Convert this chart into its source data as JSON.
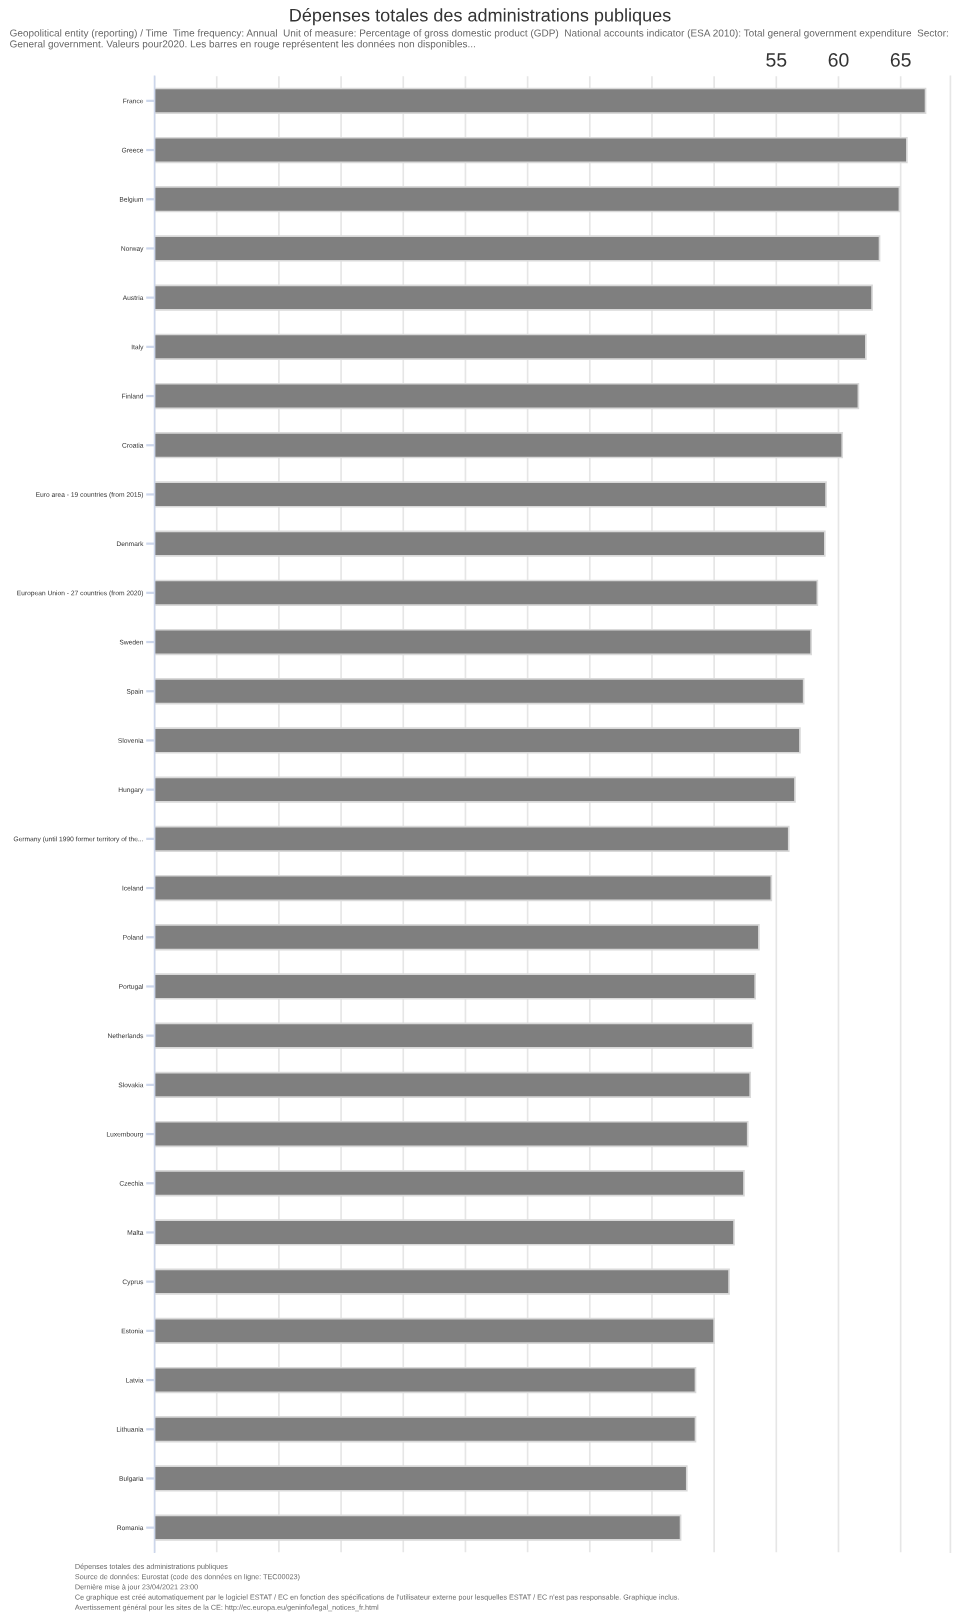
{
  "chart_data": {
    "type": "bar",
    "orientation": "horizontal",
    "title": "Dépenses totales des administrations publiques",
    "subtitle": "Geopolitical entity (reporting) / Time  Time frequency: Annual  Unit of measure: Percentage of gross domestic product (GDP)  National accounts indicator (ESA 2010): Total general government expenditure  Sector: General government. Valeurs pour2020. Les barres en rouge représentent les données non disponibles...",
    "categories": [
      "France",
      "Greece",
      "Belgium",
      "Norway",
      "Austria",
      "Italy",
      "Finland",
      "Croatia",
      "Euro area - 19 countries (from 2015)",
      "Denmark",
      "European Union - 27 countries (from 2020)",
      "Sweden",
      "Spain",
      "Slovenia",
      "Hungary",
      "Germany (until 1990 former territory of the...",
      "Iceland",
      "Poland",
      "Portugal",
      "Netherlands",
      "Slovakia",
      "Luxembourg",
      "Czechia",
      "Malta",
      "Cyprus",
      "Estonia",
      "Latvia",
      "Lithuania",
      "Bulgaria",
      "Romania"
    ],
    "values": [
      67.0,
      65.5,
      64.9,
      63.3,
      62.7,
      62.2,
      61.6,
      60.3,
      59.0,
      58.9,
      58.3,
      57.8,
      57.2,
      56.9,
      56.5,
      56.0,
      54.6,
      53.6,
      53.3,
      53.1,
      52.9,
      52.7,
      52.4,
      51.6,
      51.2,
      50.0,
      48.5,
      48.5,
      47.8,
      47.3
    ],
    "color": "#7f7f7f",
    "xlim": [
      5,
      69
    ],
    "xticks": [
      {
        "value": 5,
        "label": null
      },
      {
        "value": 10,
        "label": null
      },
      {
        "value": 15,
        "label": null
      },
      {
        "value": 20,
        "label": null
      },
      {
        "value": 25,
        "label": null
      },
      {
        "value": 30,
        "label": null
      },
      {
        "value": 35,
        "label": null
      },
      {
        "value": 40,
        "label": null
      },
      {
        "value": 45,
        "label": null
      },
      {
        "value": 50,
        "label": null
      },
      55,
      60,
      65
    ],
    "grid": "x",
    "annotations": [
      "Dépenses totales des administrations publiques",
      "Source de données: Eurostat (code des données en ligne: TEC00023)",
      "Dernière mise à jour 23/04/2021 23:00",
      "Ce graphique est créé automatiquement par le logiciel ESTAT / EC en fonction des spécifications de l'utilisateur externe pour lesquelles ESTAT / EC n'est pas responsable. Graphique inclus.",
      "Avertissement général pour les sites de la CE: http://ec.europa.eu/geninfo/legal_notices_fr.html"
    ]
  }
}
